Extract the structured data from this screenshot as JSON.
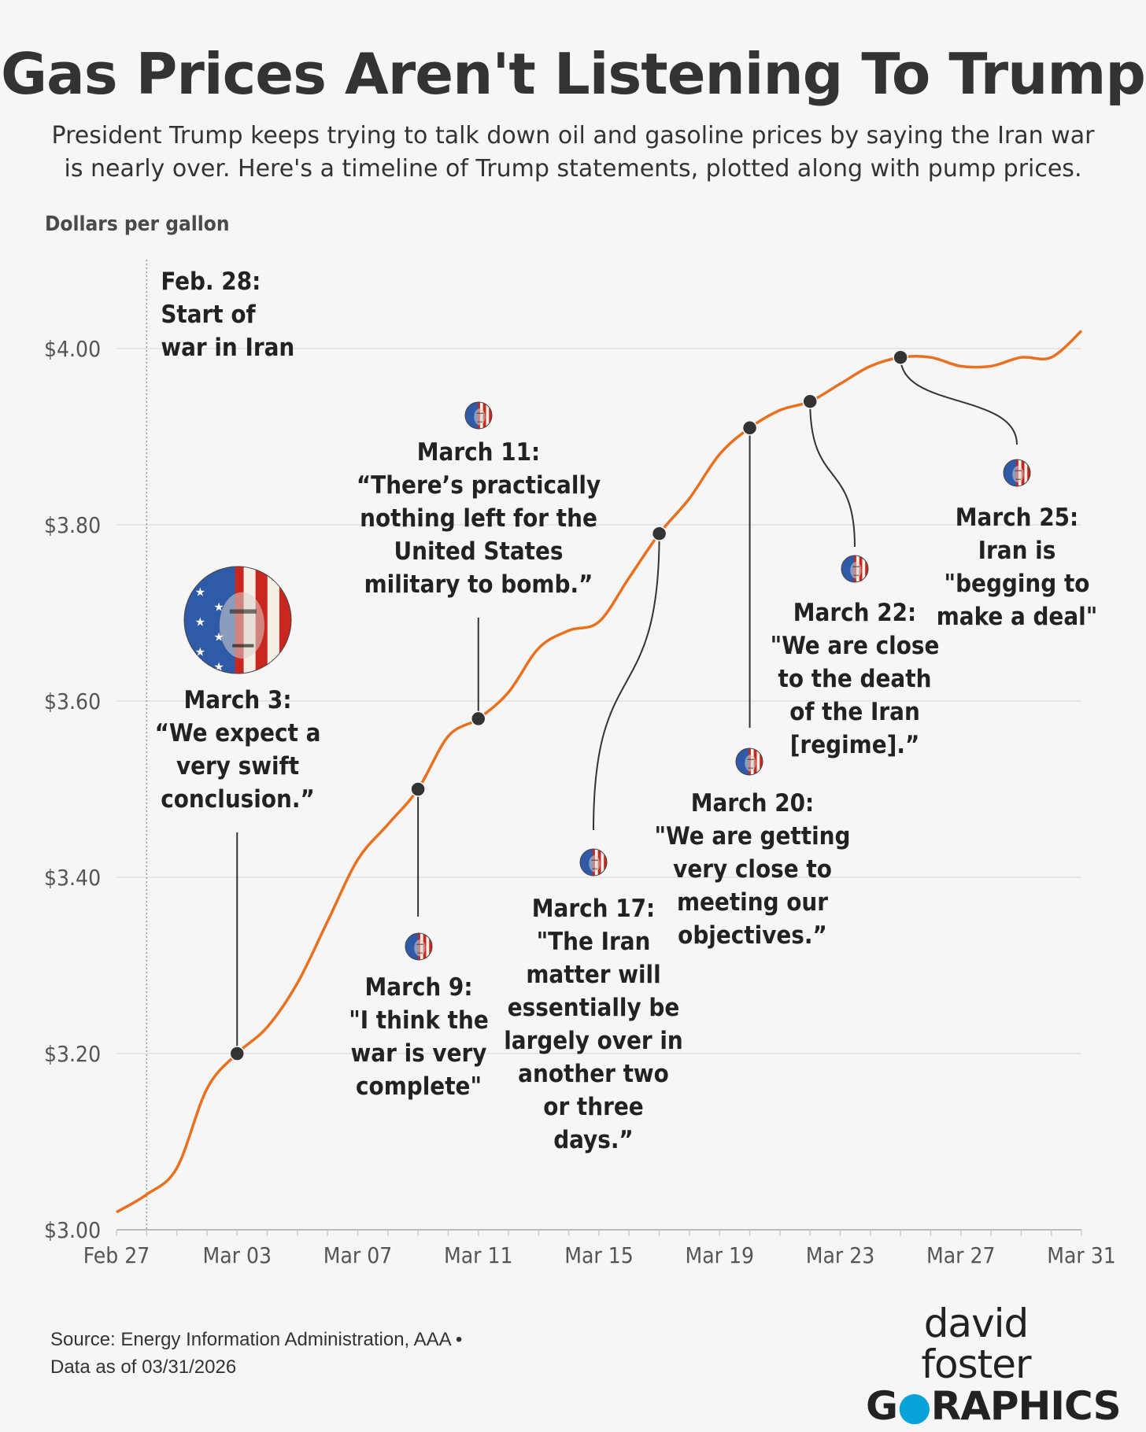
{
  "title": "Gas Prices Aren't Listening To Trump",
  "subtitle": "President Trump keeps trying to talk down oil and gasoline prices by saying the Iran war is nearly over. Here's a timeline of Trump statements, plotted along with pump prices.",
  "chart_data": {
    "type": "line",
    "ylabel": "Dollars per gallon",
    "ylim": [
      3.0,
      4.1
    ],
    "yticks": [
      3.0,
      3.2,
      3.4,
      3.6,
      3.8,
      4.0
    ],
    "ytick_labels": [
      "$3.00",
      "$3.20",
      "$3.40",
      "$3.60",
      "$3.80",
      "$4.00"
    ],
    "xlim": [
      "2026-02-27",
      "2026-03-31"
    ],
    "xtick_labels": [
      {
        "date": "2026-02-27",
        "label": "Feb 27"
      },
      {
        "date": "2026-03-03",
        "label": "Mar 03"
      },
      {
        "date": "2026-03-07",
        "label": "Mar 07"
      },
      {
        "date": "2026-03-11",
        "label": "Mar 11"
      },
      {
        "date": "2026-03-15",
        "label": "Mar 15"
      },
      {
        "date": "2026-03-19",
        "label": "Mar 19"
      },
      {
        "date": "2026-03-23",
        "label": "Mar 23"
      },
      {
        "date": "2026-03-27",
        "label": "Mar 27"
      },
      {
        "date": "2026-03-31",
        "label": "Mar 31"
      }
    ],
    "grid": true,
    "line_color": "#e8701f",
    "series": [
      {
        "x": [
          "2026-02-27",
          "2026-02-28",
          "2026-03-01",
          "2026-03-02",
          "2026-03-03",
          "2026-03-04",
          "2026-03-05",
          "2026-03-06",
          "2026-03-07",
          "2026-03-08",
          "2026-03-09",
          "2026-03-10",
          "2026-03-11",
          "2026-03-12",
          "2026-03-13",
          "2026-03-14",
          "2026-03-15",
          "2026-03-16",
          "2026-03-17",
          "2026-03-18",
          "2026-03-19",
          "2026-03-20",
          "2026-03-21",
          "2026-03-22",
          "2026-03-23",
          "2026-03-24",
          "2026-03-25",
          "2026-03-26",
          "2026-03-27",
          "2026-03-28",
          "2026-03-29",
          "2026-03-30",
          "2026-03-31"
        ],
        "values": [
          3.02,
          3.04,
          3.07,
          3.16,
          3.2,
          3.23,
          3.28,
          3.35,
          3.42,
          3.46,
          3.5,
          3.56,
          3.58,
          3.61,
          3.66,
          3.68,
          3.69,
          3.74,
          3.79,
          3.83,
          3.88,
          3.91,
          3.93,
          3.94,
          3.96,
          3.98,
          3.99,
          3.99,
          3.98,
          3.98,
          3.99,
          3.99,
          4.02
        ]
      }
    ],
    "reference_line": {
      "date": "2026-02-28",
      "label_lines": [
        "Feb. 28:",
        "Start of",
        "war in Iran"
      ]
    },
    "annotations": [
      {
        "date": "2026-03-03",
        "value": 3.2,
        "label_lines": [
          "March 3:",
          "“We expect a",
          "very swift",
          "conclusion.”"
        ]
      },
      {
        "date": "2026-03-09",
        "value": 3.5,
        "label_lines": [
          "March 9:",
          "\"I think the",
          "war is very",
          "complete\""
        ]
      },
      {
        "date": "2026-03-11",
        "value": 3.58,
        "label_lines": [
          "March 11:",
          "“There’s practically",
          "nothing left for the",
          "United States",
          "military to bomb.”"
        ]
      },
      {
        "date": "2026-03-17",
        "value": 3.79,
        "label_lines": [
          "March 17:",
          "\"The Iran",
          "matter will",
          "essentially be",
          "largely over in",
          "another two",
          "or three",
          "days.”"
        ]
      },
      {
        "date": "2026-03-20",
        "value": 3.91,
        "label_lines": [
          "March 20:",
          "\"We are getting",
          "very close to",
          "meeting our",
          "objectives.”"
        ]
      },
      {
        "date": "2026-03-22",
        "value": 3.94,
        "label_lines": [
          "March 22:",
          "\"We are close",
          "to the death",
          "of the Iran",
          "[regime].”"
        ]
      },
      {
        "date": "2026-03-25",
        "value": 3.99,
        "label_lines": [
          "March 25:",
          "Iran is",
          "\"begging to",
          "make a deal\""
        ]
      }
    ]
  },
  "source_lines": [
    "Source: Energy Information Administration, AAA •",
    "Data as of 03/31/2026"
  ],
  "brand": {
    "line1": "david foster",
    "line2_a": "G",
    "line2_b": "RAPHI",
    "line2_c": "C",
    "line2_d": "S"
  }
}
